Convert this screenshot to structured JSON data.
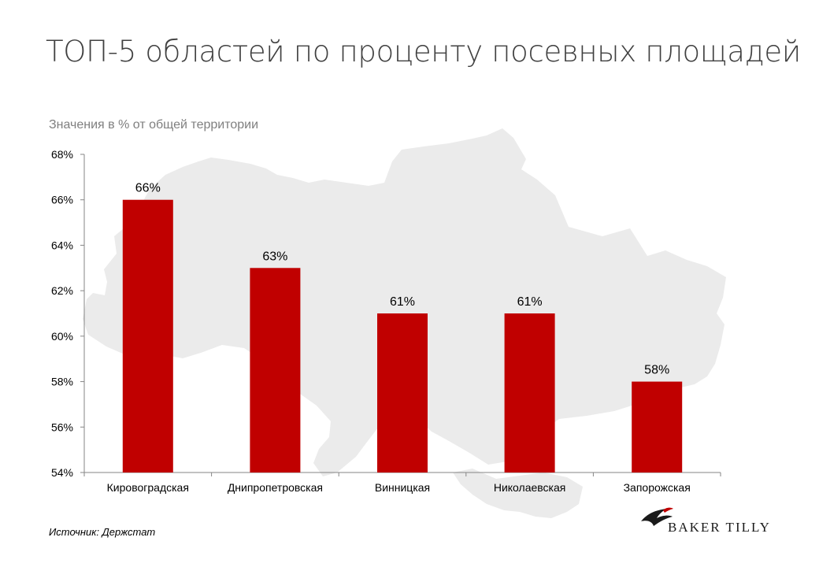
{
  "title": "ТОП-5 областей по проценту посевных площадей",
  "subtitle": "Значения в % от общей территории",
  "source": "Источник:  Держстат",
  "logo": {
    "text": "BAKER TILLY",
    "icon": "bird-logo-icon"
  },
  "colors": {
    "bar": "#c00000",
    "map": "#ebebeb",
    "axis": "#868686"
  },
  "chart_data": {
    "type": "bar",
    "categories": [
      "Кировоградская",
      "Днипропетровская",
      "Винницкая",
      "Николаевская",
      "Запорожская"
    ],
    "values": [
      66,
      63,
      61,
      61,
      58
    ],
    "data_labels": [
      "66%",
      "63%",
      "61%",
      "61%",
      "58%"
    ],
    "ylim": [
      54,
      68
    ],
    "yticks": [
      54,
      56,
      58,
      60,
      62,
      64,
      66,
      68
    ],
    "ytick_labels": [
      "54%",
      "56%",
      "58%",
      "60%",
      "62%",
      "64%",
      "66%",
      "68%"
    ],
    "xlabel": "",
    "ylabel": "",
    "grid": false,
    "legend": "none"
  }
}
